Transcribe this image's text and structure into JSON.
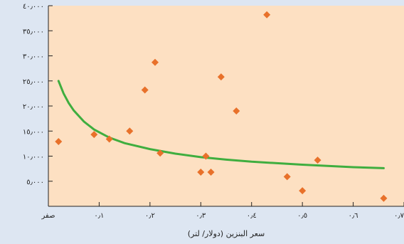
{
  "chart_data": {
    "type": "scatter",
    "xlabel": "سعر البنزين (دولار/ لتر)",
    "ylabel": "",
    "xlim": [
      0,
      0.7
    ],
    "ylim": [
      0,
      40000
    ],
    "grid": false,
    "x_ticks": [
      {
        "value": 0,
        "label": "صفر"
      },
      {
        "value": 0.1,
        "label": "٠٫١"
      },
      {
        "value": 0.2,
        "label": "٠٫٢"
      },
      {
        "value": 0.3,
        "label": "٠٫٣"
      },
      {
        "value": 0.4,
        "label": "٠٫٤"
      },
      {
        "value": 0.5,
        "label": "٠٫٥"
      },
      {
        "value": 0.6,
        "label": "٠٫٦"
      },
      {
        "value": 0.7,
        "label": "٠٫٧"
      }
    ],
    "y_ticks": [
      {
        "value": 5000,
        "label": "٥٫٠٠٠"
      },
      {
        "value": 10000,
        "label": "١٠٫٠٠٠"
      },
      {
        "value": 15000,
        "label": "١٥٫٠٠٠"
      },
      {
        "value": 20000,
        "label": "٢٠٫٠٠٠"
      },
      {
        "value": 25000,
        "label": "٢٥٫٠٠٠"
      },
      {
        "value": 30000,
        "label": "٣٠٫٠٠٠"
      },
      {
        "value": 35000,
        "label": "٣٥٫٠٠٠"
      },
      {
        "value": 40000,
        "label": "٤٠٫٠٠٠"
      }
    ],
    "points": [
      {
        "x": 0.02,
        "y": 12900
      },
      {
        "x": 0.09,
        "y": 14300
      },
      {
        "x": 0.12,
        "y": 13400
      },
      {
        "x": 0.16,
        "y": 15000
      },
      {
        "x": 0.19,
        "y": 23200
      },
      {
        "x": 0.21,
        "y": 28700
      },
      {
        "x": 0.22,
        "y": 10600
      },
      {
        "x": 0.3,
        "y": 6800
      },
      {
        "x": 0.31,
        "y": 10000
      },
      {
        "x": 0.32,
        "y": 6800
      },
      {
        "x": 0.34,
        "y": 25800
      },
      {
        "x": 0.37,
        "y": 19000
      },
      {
        "x": 0.43,
        "y": 38200
      },
      {
        "x": 0.47,
        "y": 5900
      },
      {
        "x": 0.5,
        "y": 3100
      },
      {
        "x": 0.53,
        "y": 9200
      },
      {
        "x": 0.66,
        "y": 1600
      }
    ],
    "trend_line": [
      {
        "x": 0.02,
        "y": 25000
      },
      {
        "x": 0.03,
        "y": 22500
      },
      {
        "x": 0.04,
        "y": 20600
      },
      {
        "x": 0.05,
        "y": 19100
      },
      {
        "x": 0.07,
        "y": 16900
      },
      {
        "x": 0.09,
        "y": 15300
      },
      {
        "x": 0.12,
        "y": 13700
      },
      {
        "x": 0.15,
        "y": 12600
      },
      {
        "x": 0.2,
        "y": 11400
      },
      {
        "x": 0.25,
        "y": 10500
      },
      {
        "x": 0.3,
        "y": 9800
      },
      {
        "x": 0.35,
        "y": 9300
      },
      {
        "x": 0.4,
        "y": 8900
      },
      {
        "x": 0.45,
        "y": 8600
      },
      {
        "x": 0.5,
        "y": 8300
      },
      {
        "x": 0.55,
        "y": 8050
      },
      {
        "x": 0.6,
        "y": 7800
      },
      {
        "x": 0.66,
        "y": 7600
      }
    ],
    "colors": {
      "background": "#dde6f2",
      "plot_background": "#fde0c2",
      "points": "#e8712a",
      "trend_line": "#3fae3f",
      "axis": "#222222"
    }
  }
}
